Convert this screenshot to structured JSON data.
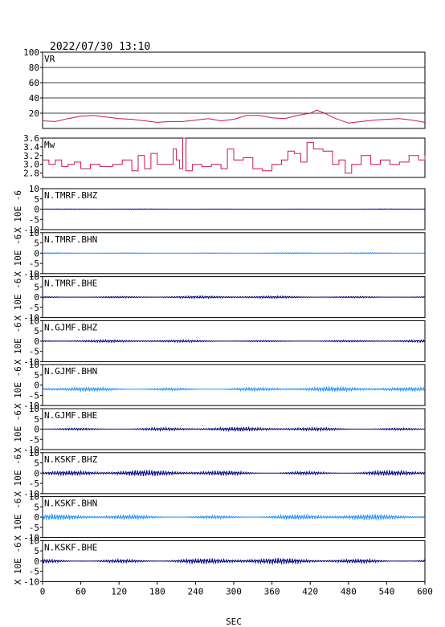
{
  "header": {
    "datetime": "2022/07/30 13:10"
  },
  "chart_data": {
    "type": "line",
    "xlabel": "SEC",
    "xlim": [
      0,
      600
    ],
    "xticks": [
      0,
      60,
      120,
      180,
      240,
      300,
      360,
      420,
      480,
      540,
      600
    ],
    "colors": {
      "vr": "#d0144a",
      "mw": "#d0144a",
      "bh_dark": "#000080",
      "bh_light": "#1e90ff"
    },
    "vr_panel": {
      "label": "VR",
      "ylim": [
        0,
        100
      ],
      "yticks": [
        20,
        40,
        60,
        80,
        100
      ],
      "grid": true,
      "series": [
        {
          "x": 0,
          "y": 10
        },
        {
          "x": 20,
          "y": 9
        },
        {
          "x": 40,
          "y": 13
        },
        {
          "x": 60,
          "y": 16
        },
        {
          "x": 80,
          "y": 17
        },
        {
          "x": 100,
          "y": 15
        },
        {
          "x": 120,
          "y": 13
        },
        {
          "x": 140,
          "y": 12
        },
        {
          "x": 160,
          "y": 10
        },
        {
          "x": 180,
          "y": 8
        },
        {
          "x": 200,
          "y": 9
        },
        {
          "x": 220,
          "y": 9
        },
        {
          "x": 240,
          "y": 11
        },
        {
          "x": 260,
          "y": 13
        },
        {
          "x": 280,
          "y": 10
        },
        {
          "x": 300,
          "y": 12
        },
        {
          "x": 320,
          "y": 17
        },
        {
          "x": 340,
          "y": 17
        },
        {
          "x": 360,
          "y": 14
        },
        {
          "x": 380,
          "y": 13
        },
        {
          "x": 400,
          "y": 17
        },
        {
          "x": 420,
          "y": 20
        },
        {
          "x": 430,
          "y": 24
        },
        {
          "x": 440,
          "y": 21
        },
        {
          "x": 460,
          "y": 13
        },
        {
          "x": 480,
          "y": 7
        },
        {
          "x": 500,
          "y": 9
        },
        {
          "x": 520,
          "y": 11
        },
        {
          "x": 540,
          "y": 12
        },
        {
          "x": 560,
          "y": 13
        },
        {
          "x": 580,
          "y": 11
        },
        {
          "x": 600,
          "y": 8
        }
      ]
    },
    "mw_panel": {
      "label": "Mw",
      "ylim": [
        2.7,
        3.6
      ],
      "yticks": [
        2.8,
        3.0,
        3.2,
        3.4,
        3.6
      ],
      "yticklabels": [
        "2.8",
        "3.0",
        "3.2",
        "3.4",
        "3.6"
      ],
      "series": [
        {
          "x": 0,
          "y": 3.1
        },
        {
          "x": 10,
          "y": 3.0
        },
        {
          "x": 20,
          "y": 3.1
        },
        {
          "x": 30,
          "y": 2.95
        },
        {
          "x": 40,
          "y": 3.0
        },
        {
          "x": 50,
          "y": 3.05
        },
        {
          "x": 60,
          "y": 2.9
        },
        {
          "x": 75,
          "y": 3.0
        },
        {
          "x": 90,
          "y": 2.95
        },
        {
          "x": 110,
          "y": 3.0
        },
        {
          "x": 125,
          "y": 3.1
        },
        {
          "x": 140,
          "y": 2.85
        },
        {
          "x": 150,
          "y": 3.2
        },
        {
          "x": 160,
          "y": 2.9
        },
        {
          "x": 170,
          "y": 3.25
        },
        {
          "x": 180,
          "y": 3.0
        },
        {
          "x": 195,
          "y": 3.0
        },
        {
          "x": 205,
          "y": 3.35
        },
        {
          "x": 210,
          "y": 3.1
        },
        {
          "x": 215,
          "y": 2.9
        },
        {
          "x": 220,
          "y": 3.6
        },
        {
          "x": 225,
          "y": 2.85
        },
        {
          "x": 235,
          "y": 3.0
        },
        {
          "x": 250,
          "y": 2.95
        },
        {
          "x": 265,
          "y": 3.0
        },
        {
          "x": 280,
          "y": 2.9
        },
        {
          "x": 290,
          "y": 3.35
        },
        {
          "x": 300,
          "y": 3.1
        },
        {
          "x": 315,
          "y": 3.15
        },
        {
          "x": 330,
          "y": 2.9
        },
        {
          "x": 345,
          "y": 2.85
        },
        {
          "x": 360,
          "y": 3.0
        },
        {
          "x": 375,
          "y": 3.1
        },
        {
          "x": 385,
          "y": 3.3
        },
        {
          "x": 395,
          "y": 3.25
        },
        {
          "x": 405,
          "y": 3.05
        },
        {
          "x": 415,
          "y": 3.5
        },
        {
          "x": 425,
          "y": 3.35
        },
        {
          "x": 440,
          "y": 3.3
        },
        {
          "x": 455,
          "y": 3.0
        },
        {
          "x": 465,
          "y": 3.1
        },
        {
          "x": 475,
          "y": 2.8
        },
        {
          "x": 485,
          "y": 3.0
        },
        {
          "x": 500,
          "y": 3.2
        },
        {
          "x": 515,
          "y": 3.0
        },
        {
          "x": 530,
          "y": 3.1
        },
        {
          "x": 545,
          "y": 3.0
        },
        {
          "x": 560,
          "y": 3.05
        },
        {
          "x": 575,
          "y": 3.2
        },
        {
          "x": 590,
          "y": 3.1
        },
        {
          "x": 600,
          "y": 3.2
        }
      ]
    },
    "waveform_ylabel": "X 10E -6",
    "waveform_ylim": [
      -10,
      10
    ],
    "waveform_yticks": [
      -10,
      -5,
      0,
      5,
      10
    ],
    "waveforms": [
      {
        "label": "N.TMRF.BHZ",
        "color": "#000080",
        "offset": 0,
        "amp": 0.15
      },
      {
        "label": "N.TMRF.BHN",
        "color": "#1e90ff",
        "offset": 0,
        "amp": 0.25
      },
      {
        "label": "N.TMRF.BHE",
        "color": "#000080",
        "offset": 0,
        "amp": 0.5
      },
      {
        "label": "N.GJMF.BHZ",
        "color": "#000080",
        "offset": 0,
        "amp": 0.5
      },
      {
        "label": "N.GJMF.BHN",
        "color": "#1e90ff",
        "offset": -2,
        "amp": 0.9
      },
      {
        "label": "N.GJMF.BHE",
        "color": "#000080",
        "offset": 0,
        "amp": 0.8
      },
      {
        "label": "N.KSKF.BHZ",
        "color": "#000080",
        "offset": 0,
        "amp": 1.2
      },
      {
        "label": "N.KSKF.BHN",
        "color": "#1e90ff",
        "offset": 0,
        "amp": 1.1
      },
      {
        "label": "N.KSKF.BHE",
        "color": "#000080",
        "offset": 0,
        "amp": 1.2
      }
    ]
  }
}
